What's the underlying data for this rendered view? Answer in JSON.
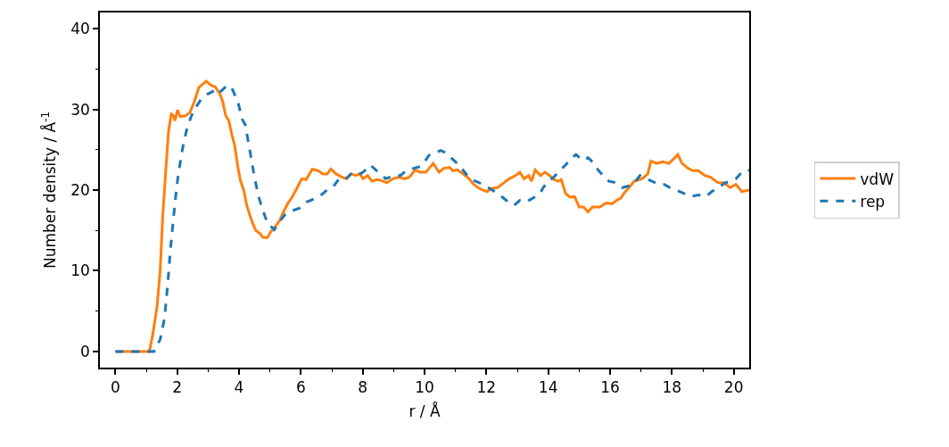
{
  "chart_data": {
    "type": "line",
    "xlabel": "r / Å",
    "ylabel": "Number density / Å$^{-1}$",
    "xlim": [
      -0.5,
      20.5
    ],
    "ylim": [
      -2,
      42
    ],
    "xticks": [
      0,
      {
        "value": 1,
        "label": null
      },
      2,
      {
        "value": 3,
        "label": null
      },
      4,
      {
        "value": 5,
        "label": null
      },
      6,
      {
        "value": 7,
        "label": null
      },
      8,
      {
        "value": 9,
        "label": null
      },
      10,
      {
        "value": 11,
        "label": null
      },
      12,
      {
        "value": 13,
        "label": null
      },
      14,
      {
        "value": 15,
        "label": null
      },
      16,
      {
        "value": 17,
        "label": null
      },
      18,
      {
        "value": 19,
        "label": null
      },
      20
    ],
    "yticks": [
      0,
      {
        "value": 5,
        "label": null
      },
      10,
      {
        "value": 15,
        "label": null
      },
      20,
      {
        "value": 25,
        "label": null
      },
      30,
      {
        "value": 35,
        "label": null
      },
      40
    ],
    "legend": "right",
    "series": [
      {
        "name": "vdW",
        "color": "#ff7f0e",
        "line_style": "solid",
        "x": [
          0,
          1.1,
          1.21,
          1.35,
          1.45,
          1.53,
          1.62,
          1.72,
          1.81,
          1.88,
          1.93,
          2.01,
          2.1,
          2.27,
          2.41,
          2.56,
          2.7,
          2.85,
          2.94,
          3.09,
          3.23,
          3.38,
          3.47,
          3.57,
          3.67,
          3.76,
          3.86,
          3.96,
          4.05,
          4.15,
          4.25,
          4.34,
          4.44,
          4.54,
          4.68,
          4.78,
          4.92,
          5.02,
          5.16,
          5.31,
          5.45,
          5.6,
          5.7,
          5.84,
          6.03,
          6.17,
          6.37,
          6.56,
          6.71,
          6.85,
          6.97,
          7.14,
          7.33,
          7.48,
          7.62,
          7.77,
          7.91,
          8.01,
          8.16,
          8.3,
          8.45,
          8.59,
          8.78,
          8.98,
          9.17,
          9.36,
          9.51,
          9.7,
          9.85,
          10.04,
          10.28,
          10.47,
          10.62,
          10.81,
          10.91,
          11.06,
          11.25,
          11.44,
          11.59,
          11.73,
          11.88,
          12.02,
          12.16,
          12.36,
          12.5,
          12.74,
          12.94,
          13.08,
          13.22,
          13.37,
          13.46,
          13.58,
          13.75,
          13.89,
          14.04,
          14.18,
          14.33,
          14.42,
          14.56,
          14.71,
          14.85,
          15.0,
          15.14,
          15.29,
          15.43,
          15.67,
          15.87,
          16.06,
          16.2,
          16.35,
          16.45,
          16.59,
          16.78,
          17.03,
          17.22,
          17.32,
          17.51,
          17.7,
          17.9,
          18.04,
          18.19,
          18.33,
          18.52,
          18.67,
          18.86,
          19.06,
          19.25,
          19.49,
          19.68,
          19.88,
          20.07,
          20.26,
          20.5
        ],
        "values": [
          0,
          0,
          2.1,
          5.6,
          10,
          16.6,
          21.8,
          27.3,
          29.4,
          29.2,
          28.6,
          29.9,
          29.1,
          29.2,
          29.6,
          31.0,
          32.7,
          33.2,
          33.5,
          33.0,
          32.8,
          31.9,
          31.0,
          29.2,
          28.6,
          27.0,
          25.5,
          22.9,
          21.1,
          20.0,
          18.1,
          17.0,
          15.9,
          15.0,
          14.6,
          14.1,
          14.1,
          14.8,
          15.4,
          16.2,
          17.4,
          18.5,
          19.0,
          20.0,
          21.4,
          21.3,
          22.6,
          22.4,
          22.0,
          22.0,
          22.6,
          22.0,
          21.6,
          21.4,
          22.0,
          21.8,
          22.0,
          21.4,
          21.8,
          21.1,
          21.3,
          21.2,
          20.9,
          21.4,
          21.6,
          21.4,
          21.6,
          22.5,
          22.2,
          22.2,
          23.3,
          22.2,
          22.7,
          22.8,
          22.4,
          22.5,
          22.0,
          21.4,
          20.7,
          20.3,
          20.0,
          19.8,
          20.2,
          20.3,
          20.7,
          21.4,
          21.8,
          22.2,
          21.4,
          21.8,
          21.1,
          22.5,
          21.8,
          22.2,
          21.8,
          21.3,
          21.1,
          21.3,
          19.6,
          19.1,
          19.2,
          17.9,
          17.9,
          17.3,
          17.9,
          17.9,
          18.4,
          18.3,
          18.7,
          19.0,
          19.6,
          20.2,
          21.1,
          21.4,
          22.0,
          23.6,
          23.3,
          23.5,
          23.3,
          23.8,
          24.4,
          23.3,
          22.7,
          22.4,
          22.4,
          21.8,
          21.6,
          20.9,
          20.9,
          20.3,
          20.7,
          19.8,
          20.0
        ]
      },
      {
        "name": "rep",
        "color": "#1f77b4",
        "line_style": "dashed",
        "x": [
          0,
          1.25,
          1.45,
          1.59,
          1.69,
          1.79,
          1.93,
          2.03,
          2.17,
          2.32,
          2.46,
          2.61,
          2.8,
          2.99,
          3.19,
          3.28,
          3.43,
          3.62,
          3.76,
          3.96,
          4.1,
          4.2,
          4.34,
          4.49,
          4.63,
          4.78,
          4.92,
          5.14,
          5.31,
          5.5,
          5.7,
          5.98,
          6.18,
          6.42,
          6.66,
          6.85,
          7.04,
          7.24,
          7.43,
          7.62,
          7.82,
          8.01,
          8.25,
          8.45,
          8.59,
          8.74,
          8.88,
          9.03,
          9.22,
          9.41,
          9.65,
          9.85,
          10.0,
          10.14,
          10.33,
          10.52,
          10.71,
          10.86,
          11.0,
          11.2,
          11.34,
          11.53,
          11.77,
          11.97,
          12.11,
          12.36,
          12.65,
          12.89,
          13.08,
          13.28,
          13.5,
          13.7,
          13.84,
          13.99,
          14.18,
          14.37,
          14.56,
          14.76,
          14.9,
          15.1,
          15.29,
          15.43,
          15.63,
          15.82,
          15.96,
          16.2,
          16.4,
          16.59,
          16.78,
          16.97,
          17.17,
          17.36,
          17.55,
          17.75,
          17.94,
          18.14,
          18.38,
          18.62,
          18.86,
          19.1,
          19.29,
          19.49,
          19.73,
          19.92,
          20.07,
          20.26,
          20.45,
          20.5
        ],
        "values": [
          0,
          0,
          1.5,
          4.1,
          8.2,
          13,
          18.5,
          21.8,
          25.1,
          27.7,
          29.2,
          30.3,
          31.4,
          31.9,
          32.3,
          31.9,
          32.3,
          33.0,
          32.7,
          31.0,
          28.8,
          28.1,
          25.1,
          21.8,
          19.2,
          17.4,
          15.9,
          15.1,
          16.1,
          17.0,
          17.4,
          17.8,
          18.5,
          18.9,
          19.4,
          20.0,
          20.4,
          21.4,
          21.3,
          22.0,
          21.8,
          22.2,
          23.1,
          22.4,
          22.0,
          21.4,
          21.6,
          21.8,
          21.8,
          22.4,
          22.7,
          22.9,
          23.5,
          24.3,
          24.6,
          24.9,
          24.6,
          24.0,
          23.5,
          22.7,
          22.0,
          21.3,
          20.9,
          20.5,
          20.2,
          19.6,
          18.7,
          18.1,
          18.7,
          18.5,
          19.0,
          19.4,
          20.3,
          21.1,
          21.6,
          22.4,
          23.1,
          24.0,
          24.4,
          23.7,
          24.0,
          23.5,
          22.4,
          21.6,
          21.1,
          20.9,
          20.3,
          20.5,
          20.9,
          21.8,
          21.4,
          21.1,
          20.7,
          20.7,
          20.3,
          20.0,
          19.6,
          19.2,
          19.4,
          19.2,
          19.8,
          20.3,
          20.9,
          21.1,
          21.4,
          22.2,
          22.5,
          22.4
        ]
      }
    ]
  }
}
